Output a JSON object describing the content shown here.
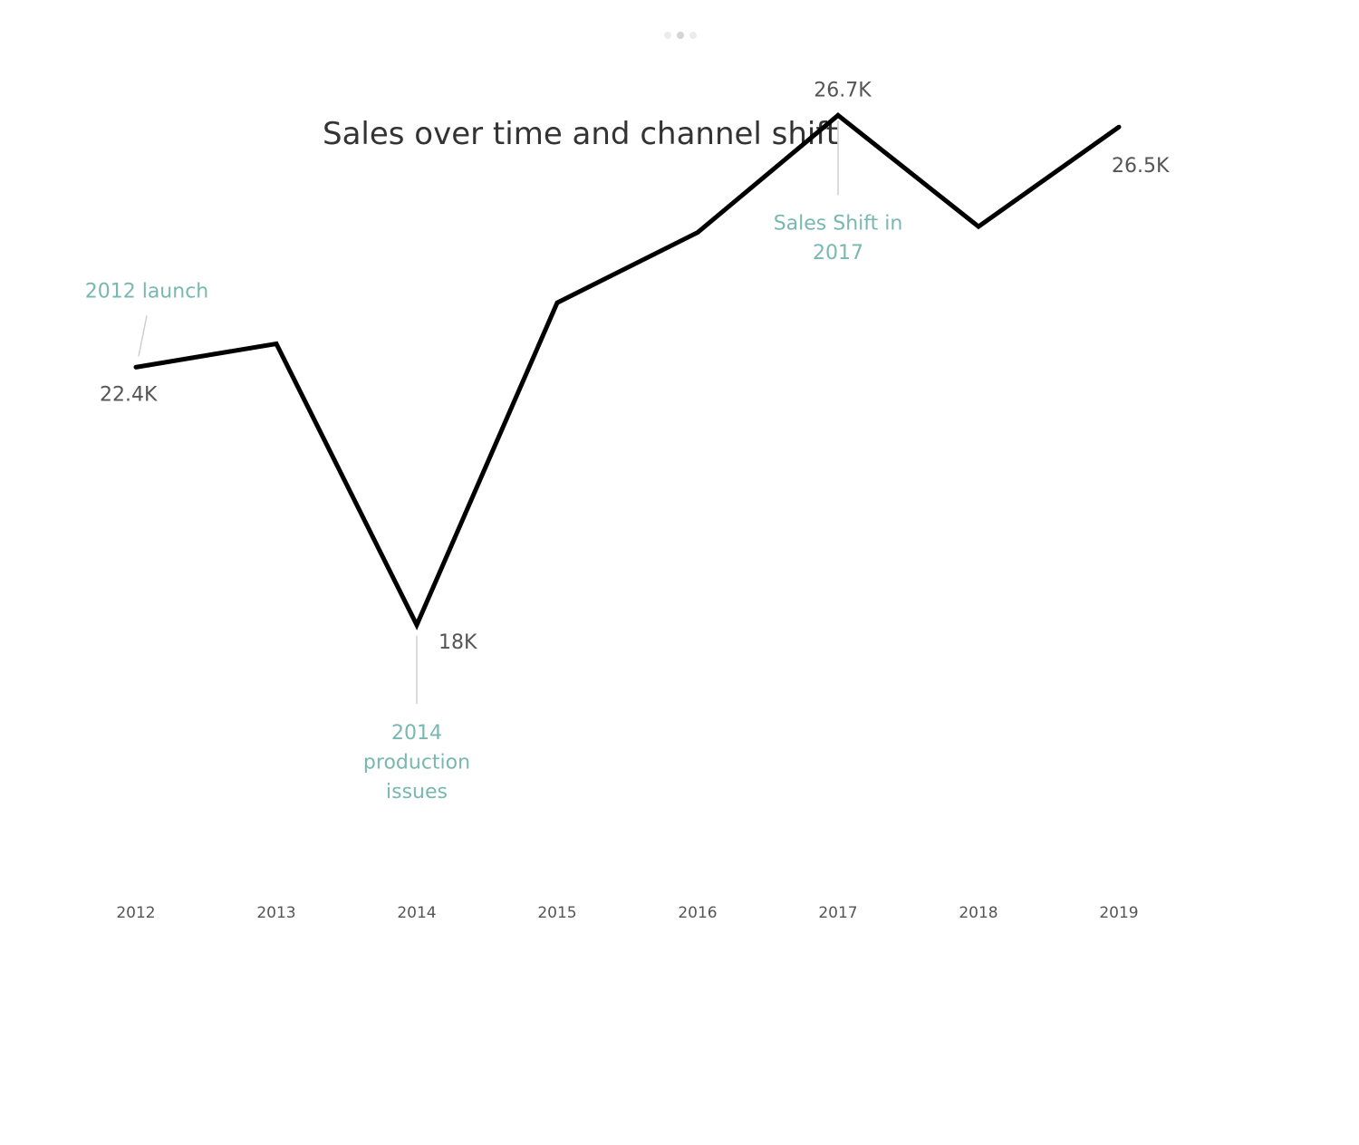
{
  "pager": {
    "dot_count": 3,
    "active_index": 1
  },
  "chart_data": {
    "type": "line",
    "title": "Sales over time and channel shift",
    "xlabel": "",
    "ylabel": "",
    "x": [
      "2012",
      "2013",
      "2014",
      "2015",
      "2016",
      "2017",
      "2018",
      "2019"
    ],
    "series": [
      {
        "values": [
          22400,
          22800,
          18000,
          23500,
          24700,
          26700,
          24800,
          26500
        ]
      }
    ],
    "ylim": [
      13700,
      27400
    ],
    "grid": false,
    "line_color": "#000000",
    "data_labels": [
      {
        "x": "2012",
        "text": "22.4K",
        "position": "below-left"
      },
      {
        "x": "2014",
        "text": "18K",
        "position": "below-right"
      },
      {
        "x": "2017",
        "text": "26.7K",
        "position": "above"
      },
      {
        "x": "2019",
        "text": "26.5K",
        "position": "below-right"
      }
    ],
    "annotations": [
      {
        "x": "2012",
        "lines": [
          "2012 launch"
        ],
        "position": "above"
      },
      {
        "x": "2014",
        "lines": [
          "2014",
          "production",
          "issues"
        ],
        "position": "below"
      },
      {
        "x": "2017",
        "lines": [
          "Sales Shift in",
          "2017"
        ],
        "position": "below"
      }
    ],
    "annotation_color": "#78b8b0"
  }
}
